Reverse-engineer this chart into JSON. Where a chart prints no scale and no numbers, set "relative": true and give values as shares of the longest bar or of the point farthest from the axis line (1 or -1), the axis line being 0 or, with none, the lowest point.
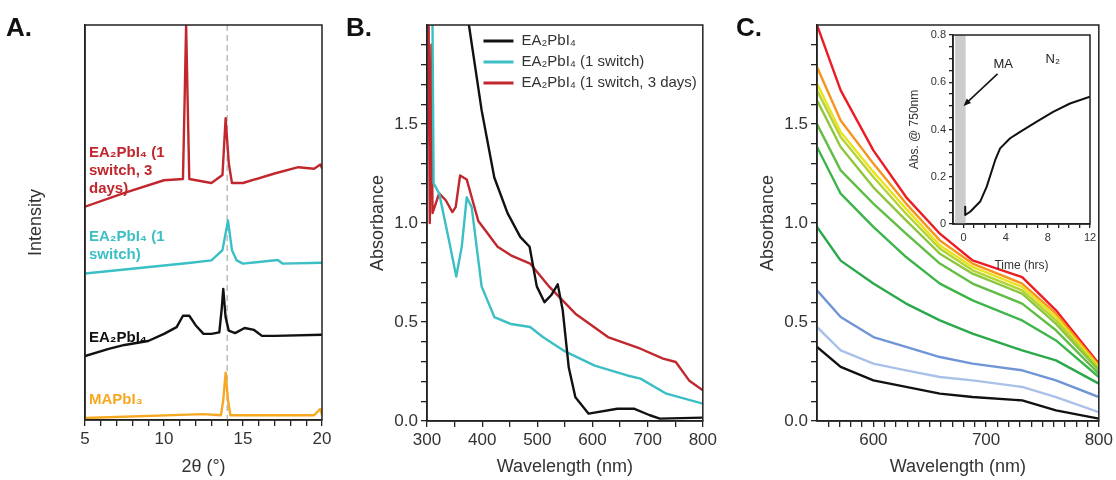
{
  "chart_data": [
    {
      "type": "line",
      "title": "A.",
      "xlabel": "2θ (°)",
      "ylabel": "Intensity",
      "relative": true,
      "legend": false,
      "grid": false,
      "xlim": [
        5,
        20
      ],
      "xticks": [
        5,
        {
          "value": 6,
          "label": null
        },
        {
          "value": 7,
          "label": null
        },
        {
          "value": 8,
          "label": null
        },
        {
          "value": 9,
          "label": null
        },
        10,
        {
          "value": 11,
          "label": null
        },
        {
          "value": 12,
          "label": null
        },
        {
          "value": 13,
          "label": null
        },
        {
          "value": 14,
          "label": null
        },
        15,
        {
          "value": 16,
          "label": null
        },
        {
          "value": 17,
          "label": null
        },
        {
          "value": 18,
          "label": null
        },
        {
          "value": 19,
          "label": null
        },
        20
      ],
      "ref_lines": [
        {
          "axis": "x",
          "value": 14,
          "label": null,
          "color": "#bbbbbb",
          "line_style": "dashed"
        }
      ],
      "series": [
        {
          "name": "EA₂PbI₄ (1 switch, 3 days)",
          "color": "#c1272d",
          "x": [
            5,
            7.5,
            10,
            11.2,
            11.3,
            11.4,
            11.5,
            11.6,
            13,
            13.7,
            13.9,
            14.1,
            14.3,
            15,
            17,
            18.5,
            19.5,
            19.9,
            20
          ],
          "values": [
            0.54,
            0.575,
            0.607,
            0.61,
            0.8,
            1.0,
            0.8,
            0.61,
            0.6,
            0.62,
            0.764,
            0.65,
            0.6,
            0.6,
            0.624,
            0.64,
            0.636,
            0.647,
            0.638
          ]
        },
        {
          "name": "EA₂PbI₄ (1 switch)",
          "color": "#3bbfc4",
          "x": [
            5,
            10,
            11.7,
            13,
            13.7,
            14.05,
            14.3,
            14.6,
            15,
            17.2,
            17.5,
            20
          ],
          "values": [
            0.371,
            0.391,
            0.398,
            0.404,
            0.43,
            0.505,
            0.43,
            0.404,
            0.396,
            0.405,
            0.396,
            0.398
          ]
        },
        {
          "name": "EA₂PbI₄",
          "color": "#111111",
          "x": [
            5,
            6.5,
            7.5,
            9,
            10,
            10.8,
            11.2,
            11.6,
            12,
            12.5,
            13,
            13.5,
            13.65,
            13.75,
            13.9,
            14.1,
            14.5,
            15.1,
            15.7,
            16.2,
            17,
            20
          ],
          "values": [
            0.162,
            0.18,
            0.19,
            0.2,
            0.218,
            0.235,
            0.264,
            0.264,
            0.24,
            0.218,
            0.218,
            0.222,
            0.28,
            0.332,
            0.26,
            0.226,
            0.22,
            0.233,
            0.228,
            0.213,
            0.213,
            0.216
          ]
        },
        {
          "name": "MAPbI₃",
          "color": "#f7a823",
          "x": [
            5,
            12.5,
            13.6,
            13.75,
            13.9,
            14.05,
            14.2,
            19.5,
            19.9,
            20
          ],
          "values": [
            0.005,
            0.015,
            0.012,
            0.05,
            0.12,
            0.05,
            0.012,
            0.012,
            0.028,
            0.012
          ]
        }
      ]
    },
    {
      "type": "line",
      "title": "B.",
      "xlabel": "Wavelength (nm)",
      "ylabel": "Absorbance",
      "legend": "top right",
      "grid": false,
      "xlim": [
        300,
        800
      ],
      "xticks": [
        300,
        {
          "value": 350,
          "label": null
        },
        400,
        {
          "value": 450,
          "label": null
        },
        500,
        {
          "value": 550,
          "label": null
        },
        600,
        {
          "value": 650,
          "label": null
        },
        700,
        {
          "value": 750,
          "label": null
        },
        800
      ],
      "ylim": [
        0,
        2.0
      ],
      "yticks": [
        {
          "value": 0,
          "label": "0.0"
        },
        {
          "value": 0.1,
          "label": null
        },
        {
          "value": 0.2,
          "label": null
        },
        {
          "value": 0.3,
          "label": null
        },
        {
          "value": 0.4,
          "label": null
        },
        {
          "value": 0.5,
          "label": "0.5"
        },
        {
          "value": 0.6,
          "label": null
        },
        {
          "value": 0.7,
          "label": null
        },
        {
          "value": 0.8,
          "label": null
        },
        {
          "value": 0.9,
          "label": null
        },
        {
          "value": 1.0,
          "label": "1.0"
        },
        {
          "value": 1.1,
          "label": null
        },
        {
          "value": 1.2,
          "label": null
        },
        {
          "value": 1.3,
          "label": null
        },
        {
          "value": 1.4,
          "label": null
        },
        {
          "value": 1.5,
          "label": "1.5"
        },
        {
          "value": 1.6,
          "label": null
        },
        {
          "value": 1.7,
          "label": null
        },
        {
          "value": 1.8,
          "label": null
        },
        {
          "value": 1.9,
          "label": null
        }
      ],
      "series": [
        {
          "name": "EA₂PbI₄",
          "color": "#111111",
          "x": [
            376,
            399,
            422,
            446,
            469,
            486,
            499,
            513,
            525,
            537,
            546,
            557,
            569,
            593,
            645,
            675,
            704,
            722,
            800
          ],
          "values": [
            2.0,
            1.57,
            1.23,
            1.05,
            0.93,
            0.88,
            0.68,
            0.6,
            0.635,
            0.69,
            0.56,
            0.27,
            0.12,
            0.037,
            0.062,
            0.062,
            0.029,
            0.012,
            0.017
          ]
        },
        {
          "name": "EA₂PbI₄ (1 switch)",
          "color": "#3bbfc4",
          "x": [
            310,
            312,
            322,
            340,
            353,
            363,
            372,
            381,
            399,
            422,
            452,
            487,
            510,
            551,
            604,
            663,
            687,
            734,
            800
          ],
          "values": [
            2.0,
            1.2,
            1.15,
            0.91,
            0.73,
            0.88,
            1.13,
            1.08,
            0.68,
            0.525,
            0.49,
            0.475,
            0.424,
            0.35,
            0.28,
            0.23,
            0.214,
            0.138,
            0.088
          ]
        },
        {
          "name": "EA₂PbI₄ (1 switch, 3 days)",
          "color": "#c1272d",
          "x": [
            303,
            305,
            308,
            310,
            322,
            334,
            346,
            352,
            360,
            372,
            393,
            428,
            452,
            487,
            522,
            569,
            628,
            687,
            728,
            751,
            775,
            800
          ],
          "values": [
            2.0,
            1.0,
            1.9,
            1.05,
            1.15,
            1.115,
            1.055,
            1.08,
            1.24,
            1.22,
            1.01,
            0.88,
            0.837,
            0.795,
            0.677,
            0.542,
            0.424,
            0.365,
            0.315,
            0.298,
            0.205,
            0.155
          ]
        }
      ]
    },
    {
      "type": "line",
      "title": "C.",
      "xlabel": "Wavelength (nm)",
      "ylabel": "Absorbance",
      "legend": false,
      "grid": false,
      "xlim": [
        550,
        800
      ],
      "xticks": [
        {
          "value": 560,
          "label": null
        },
        {
          "value": 570,
          "label": null
        },
        {
          "value": 580,
          "label": null
        },
        {
          "value": 590,
          "label": null
        },
        600,
        {
          "value": 610,
          "label": null
        },
        {
          "value": 620,
          "label": null
        },
        {
          "value": 630,
          "label": null
        },
        {
          "value": 640,
          "label": null
        },
        {
          "value": 650,
          "label": null
        },
        {
          "value": 660,
          "label": null
        },
        {
          "value": 670,
          "label": null
        },
        {
          "value": 680,
          "label": null
        },
        {
          "value": 690,
          "label": null
        },
        700,
        {
          "value": 710,
          "label": null
        },
        {
          "value": 720,
          "label": null
        },
        {
          "value": 730,
          "label": null
        },
        {
          "value": 740,
          "label": null
        },
        {
          "value": 750,
          "label": null
        },
        {
          "value": 760,
          "label": null
        },
        {
          "value": 770,
          "label": null
        },
        {
          "value": 780,
          "label": null
        },
        {
          "value": 790,
          "label": null
        },
        800
      ],
      "ylim": [
        0,
        2.0
      ],
      "yticks": [
        {
          "value": 0,
          "label": "0.0"
        },
        {
          "value": 0.1,
          "label": null
        },
        {
          "value": 0.2,
          "label": null
        },
        {
          "value": 0.3,
          "label": null
        },
        {
          "value": 0.4,
          "label": null
        },
        {
          "value": 0.5,
          "label": "0.5"
        },
        {
          "value": 0.6,
          "label": null
        },
        {
          "value": 0.7,
          "label": null
        },
        {
          "value": 0.8,
          "label": null
        },
        {
          "value": 0.9,
          "label": null
        },
        {
          "value": 1.0,
          "label": "1.0"
        },
        {
          "value": 1.1,
          "label": null
        },
        {
          "value": 1.2,
          "label": null
        },
        {
          "value": 1.3,
          "label": null
        },
        {
          "value": 1.4,
          "label": null
        },
        {
          "value": 1.5,
          "label": "1.5"
        },
        {
          "value": 1.6,
          "label": null
        },
        {
          "value": 1.7,
          "label": null
        },
        {
          "value": 1.8,
          "label": null
        },
        {
          "value": 1.9,
          "label": null
        }
      ],
      "x": [
        550,
        571,
        600,
        629,
        659,
        688,
        732,
        762,
        800
      ],
      "series": [
        {
          "color": "#111111",
          "values": [
            0.374,
            0.273,
            0.205,
            0.172,
            0.138,
            0.121,
            0.104,
            0.054,
            0.012
          ]
        },
        {
          "color": "#a9c1e8",
          "values": [
            0.475,
            0.357,
            0.29,
            0.256,
            0.222,
            0.205,
            0.172,
            0.121,
            0.045
          ]
        },
        {
          "color": "#6f95d6",
          "values": [
            0.66,
            0.525,
            0.424,
            0.374,
            0.323,
            0.29,
            0.256,
            0.205,
            0.121
          ]
        },
        {
          "color": "#2aa84a",
          "values": [
            0.98,
            0.81,
            0.694,
            0.593,
            0.508,
            0.441,
            0.357,
            0.306,
            0.189
          ]
        },
        {
          "color": "#3db54a",
          "values": [
            1.384,
            1.148,
            0.98,
            0.828,
            0.694,
            0.609,
            0.508,
            0.407,
            0.222
          ]
        },
        {
          "color": "#62bd46",
          "values": [
            1.5,
            1.266,
            1.098,
            0.946,
            0.795,
            0.694,
            0.593,
            0.458,
            0.239
          ]
        },
        {
          "color": "#8dc63f",
          "values": [
            1.62,
            1.384,
            1.18,
            1.013,
            0.845,
            0.744,
            0.643,
            0.49,
            0.256
          ]
        },
        {
          "color": "#b5d334",
          "values": [
            1.67,
            1.434,
            1.232,
            1.047,
            0.87,
            0.761,
            0.66,
            0.508,
            0.264
          ]
        },
        {
          "color": "#e8e31c",
          "values": [
            1.704,
            1.46,
            1.258,
            1.072,
            0.887,
            0.778,
            0.677,
            0.525,
            0.273
          ]
        },
        {
          "color": "#f7941d",
          "values": [
            1.788,
            1.518,
            1.3,
            1.098,
            0.912,
            0.795,
            0.694,
            0.542,
            0.281
          ]
        },
        {
          "color": "#ed1c24",
          "values": [
            2.0,
            1.67,
            1.367,
            1.131,
            0.946,
            0.811,
            0.727,
            0.559,
            0.29
          ]
        }
      ]
    },
    {
      "type": "line",
      "xlabel": "Time (hrs)",
      "ylabel": "Abs. @ 750nm",
      "legend": false,
      "grid": false,
      "xlim": [
        -1,
        12
      ],
      "xticks": [
        0,
        {
          "value": 1,
          "label": null
        },
        {
          "value": 2,
          "label": null
        },
        {
          "value": 3,
          "label": null
        },
        4,
        {
          "value": 5,
          "label": null
        },
        {
          "value": 6,
          "label": null
        },
        {
          "value": 7,
          "label": null
        },
        8,
        {
          "value": 9,
          "label": null
        },
        {
          "value": 10,
          "label": null
        },
        {
          "value": 11,
          "label": null
        },
        12
      ],
      "ylim": [
        0,
        0.8
      ],
      "yticks": [
        0,
        {
          "value": 0.05,
          "label": null
        },
        {
          "value": 0.1,
          "label": null
        },
        {
          "value": 0.15,
          "label": null
        },
        0.2,
        {
          "value": 0.25,
          "label": null
        },
        {
          "value": 0.3,
          "label": null
        },
        {
          "value": 0.35,
          "label": null
        },
        0.4,
        {
          "value": 0.45,
          "label": null
        },
        {
          "value": 0.5,
          "label": null
        },
        {
          "value": 0.55,
          "label": null
        },
        0.6,
        {
          "value": 0.65,
          "label": null
        },
        {
          "value": 0.7,
          "label": null
        },
        {
          "value": 0.75,
          "label": null
        },
        0.8
      ],
      "bands": [
        {
          "axis": "x",
          "from": -0.8,
          "to": 0.2,
          "label": null,
          "color": "#cccccc"
        }
      ],
      "annotations": [
        {
          "text": "MA",
          "x": 0,
          "y": 0.5
        },
        "N₂"
      ],
      "series": [
        {
          "color": "#111111",
          "x": [
            0.16,
            0.16,
            0.63,
            1.58,
            2.2,
            3.0,
            3.47,
            4.42,
            5.37,
            6.95,
            8.5,
            10.1,
            12
          ],
          "values": [
            0.073,
            0.038,
            0.052,
            0.095,
            0.158,
            0.27,
            0.32,
            0.363,
            0.39,
            0.433,
            0.475,
            0.51,
            0.539
          ]
        }
      ]
    }
  ]
}
